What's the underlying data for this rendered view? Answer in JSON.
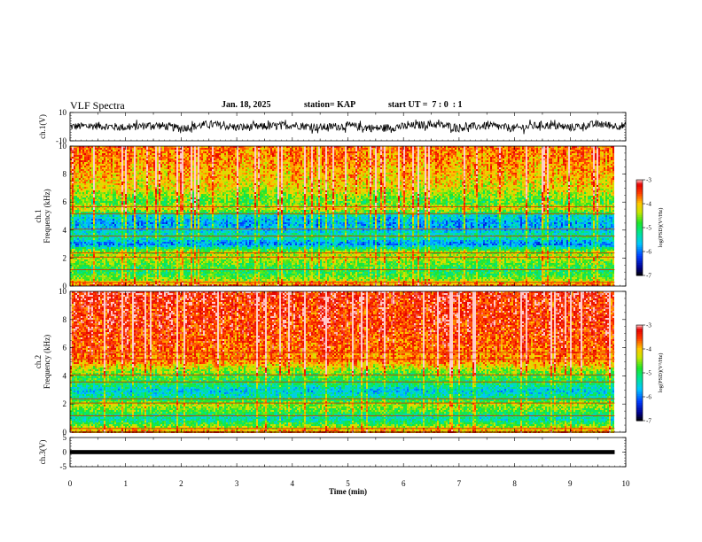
{
  "header": {
    "title": "VLF Spectra",
    "date": "Jan. 18, 2025",
    "station": "station= KAP",
    "start_time": "start UT =  7 : 0  : 1"
  },
  "chart_data": [
    {
      "type": "line",
      "ylabel": "ch.1(V)",
      "ylim": [
        -10,
        10
      ],
      "yticks": [
        "10",
        "-10"
      ],
      "xlim": [
        0,
        10
      ],
      "color": "#000000",
      "description_values": "noisy waveform around 0 V, amplitude about ±5 V",
      "x": [
        0,
        0.5,
        1,
        1.5,
        2,
        2.5,
        3,
        3.5,
        4,
        4.5,
        5,
        5.5,
        6,
        6.5,
        7,
        7.5,
        8,
        8.5,
        9,
        9.5,
        9.8
      ],
      "y": [
        0,
        1,
        -1,
        2,
        -2,
        3,
        -1,
        0,
        2,
        -1,
        1,
        -2,
        0,
        3,
        -1,
        1,
        -2,
        2,
        -1,
        3,
        1
      ]
    },
    {
      "type": "heatmap",
      "ylabel": "ch.1\nFrequency (kHz)",
      "ylim": [
        0,
        10
      ],
      "yticks": [
        "0",
        "2",
        "4",
        "6",
        "8",
        "10"
      ],
      "xlim": [
        0,
        9.8
      ],
      "colorbar": {
        "label": "log(PSD)(V²/Hz)",
        "ticks": [
          "-3",
          "-4",
          "-5",
          "-6",
          "-7"
        ],
        "range": [
          -7,
          -3
        ]
      },
      "profile_khz": [
        0,
        0.5,
        1,
        1.5,
        2,
        2.5,
        3,
        3.5,
        4,
        4.5,
        5,
        5.5,
        6,
        7,
        8,
        9,
        10
      ],
      "profile_level": [
        -3.6,
        -4.6,
        -5.0,
        -4.8,
        -4.4,
        -4.6,
        -6.0,
        -5.2,
        -5.6,
        -5.8,
        -5.5,
        -4.3,
        -4.8,
        -4.2,
        -4.0,
        -3.8,
        -3.7
      ]
    },
    {
      "type": "heatmap",
      "ylabel": "ch.2\nFrequency (kHz)",
      "ylim": [
        0,
        10
      ],
      "yticks": [
        "0",
        "2",
        "4",
        "6",
        "8",
        "10"
      ],
      "xlim": [
        0,
        9.8
      ],
      "colorbar": {
        "label": "log(PSD)(V²/Hz)",
        "ticks": [
          "-3",
          "-4",
          "-5",
          "-6",
          "-7"
        ],
        "range": [
          -7,
          -3
        ]
      },
      "profile_khz": [
        0,
        0.5,
        1,
        1.5,
        2,
        2.5,
        3,
        3.5,
        4,
        4.5,
        5,
        6,
        7,
        8,
        9,
        10
      ],
      "profile_level": [
        -3.6,
        -4.6,
        -5.4,
        -4.8,
        -4.4,
        -5.2,
        -5.6,
        -5.0,
        -4.8,
        -4.4,
        -3.8,
        -3.6,
        -3.5,
        -3.4,
        -3.4,
        -3.3
      ]
    },
    {
      "type": "line",
      "ylabel": "ch.3(V)",
      "ylim": [
        -5,
        5
      ],
      "yticks": [
        "5",
        "0",
        "-5"
      ],
      "xlim": [
        0,
        9.8
      ],
      "color": "#000000",
      "x": [
        0,
        9.8
      ],
      "y": [
        0,
        0
      ]
    }
  ],
  "xaxis": {
    "label": "Time (min)",
    "ticks": [
      "0",
      "1",
      "2",
      "3",
      "4",
      "5",
      "6",
      "7",
      "8",
      "9",
      "10"
    ],
    "range": [
      0,
      10
    ]
  }
}
